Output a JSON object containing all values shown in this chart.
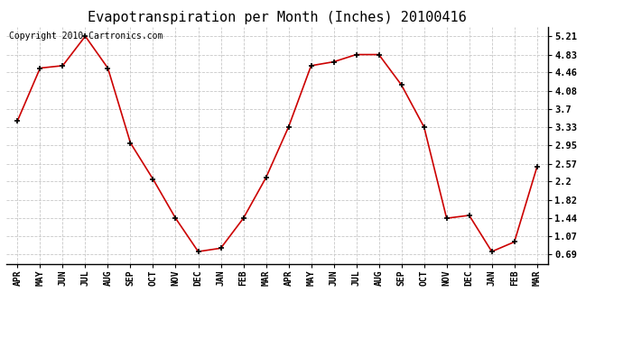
{
  "title": "Evapotranspiration per Month (Inches) 20100416",
  "copyright": "Copyright 2010 Cartronics.com",
  "months": [
    "APR",
    "MAY",
    "JUN",
    "JUL",
    "AUG",
    "SEP",
    "OCT",
    "NOV",
    "DEC",
    "JAN",
    "FEB",
    "MAR",
    "APR",
    "MAY",
    "JUN",
    "JUL",
    "AUG",
    "SEP",
    "OCT",
    "NOV",
    "DEC",
    "JAN",
    "FEB",
    "MAR"
  ],
  "values": [
    3.46,
    4.55,
    4.6,
    5.21,
    4.55,
    3.0,
    2.25,
    1.44,
    0.75,
    0.82,
    1.44,
    2.28,
    3.33,
    4.6,
    4.68,
    4.83,
    4.83,
    4.2,
    3.33,
    1.44,
    1.5,
    0.75,
    0.95,
    2.5
  ],
  "line_color": "#cc0000",
  "marker_color": "#000000",
  "background_color": "#ffffff",
  "grid_color": "#c8c8c8",
  "yticks": [
    0.69,
    1.07,
    1.44,
    1.82,
    2.2,
    2.57,
    2.95,
    3.33,
    3.7,
    4.08,
    4.46,
    4.83,
    5.21
  ],
  "title_fontsize": 11,
  "copyright_fontsize": 7,
  "figwidth": 6.9,
  "figheight": 3.75,
  "dpi": 100
}
